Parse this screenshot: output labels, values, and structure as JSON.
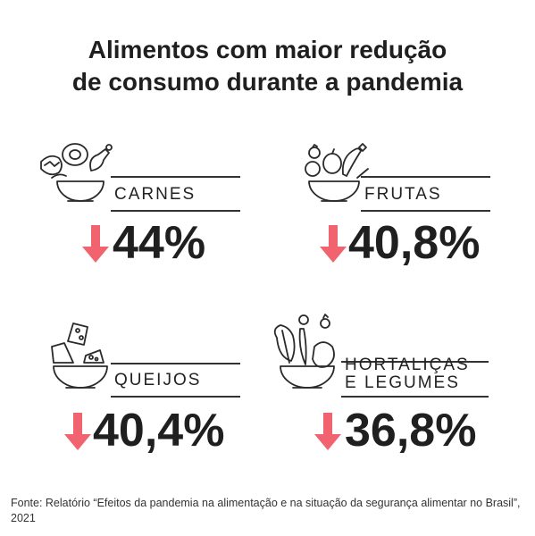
{
  "title_line1": "Alimentos com maior redução",
  "title_line2": "de consumo durante a pandemia",
  "items": [
    {
      "label": "CARNES",
      "value": "44%"
    },
    {
      "label": "FRUTAS",
      "value": "40,8%"
    },
    {
      "label": "QUEIJOS",
      "value": "40,4%"
    },
    {
      "label_line1": "HORTALIÇAS",
      "label_line2": "E LEGUMES",
      "value": "36,8%"
    }
  ],
  "source": "Fonte: Relatório “Efeitos da pandemia na alimentação e na situação da segurança alimentar no Brasil”, 2021",
  "colors": {
    "arrow": "#f26370",
    "text": "#1f1f1f"
  },
  "icons": [
    "meat-bowl-icon",
    "fruit-bowl-icon",
    "cheese-bowl-icon",
    "vegetable-bowl-icon",
    "down-arrow-icon"
  ]
}
